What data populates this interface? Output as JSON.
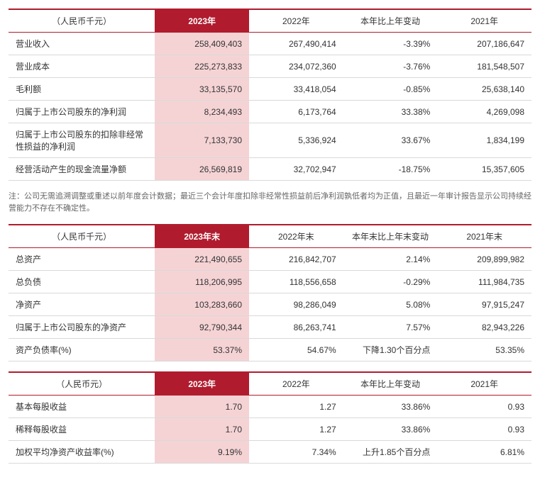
{
  "colors": {
    "accent": "#b01c2e",
    "highlight_bg": "#f5d3d5",
    "border": "#d9d9d9",
    "note_text": "#666666"
  },
  "table1": {
    "unit_label": "（人民币千元）",
    "headers": [
      "2023年",
      "2022年",
      "本年比上年变动",
      "2021年"
    ],
    "rows": [
      {
        "label": "营业收入",
        "v2023": "258,409,403",
        "v2022": "267,490,414",
        "change": "-3.39%",
        "v2021": "207,186,647"
      },
      {
        "label": "营业成本",
        "v2023": "225,273,833",
        "v2022": "234,072,360",
        "change": "-3.76%",
        "v2021": "181,548,507"
      },
      {
        "label": "毛利额",
        "v2023": "33,135,570",
        "v2022": "33,418,054",
        "change": "-0.85%",
        "v2021": "25,638,140"
      },
      {
        "label": "归属于上市公司股东的净利润",
        "v2023": "8,234,493",
        "v2022": "6,173,764",
        "change": "33.38%",
        "v2021": "4,269,098"
      },
      {
        "label": "归属于上市公司股东的扣除非经常性损益的净利润",
        "v2023": "7,133,730",
        "v2022": "5,336,924",
        "change": "33.67%",
        "v2021": "1,834,199"
      },
      {
        "label": "经营活动产生的现金流量净额",
        "v2023": "26,569,819",
        "v2022": "32,702,947",
        "change": "-18.75%",
        "v2021": "15,357,605"
      }
    ]
  },
  "note1": "注：公司无需追溯调整或重述以前年度会计数据；最近三个会计年度扣除非经常性损益前后净利润孰低者均为正值，且最近一年审计报告显示公司持续经营能力不存在不确定性。",
  "table2": {
    "unit_label": "（人民币千元）",
    "headers": [
      "2023年末",
      "2022年末",
      "本年末比上年末变动",
      "2021年末"
    ],
    "rows": [
      {
        "label": "总资产",
        "v2023": "221,490,655",
        "v2022": "216,842,707",
        "change": "2.14%",
        "v2021": "209,899,982"
      },
      {
        "label": "总负债",
        "v2023": "118,206,995",
        "v2022": "118,556,658",
        "change": "-0.29%",
        "v2021": "111,984,735"
      },
      {
        "label": "净资产",
        "v2023": "103,283,660",
        "v2022": "98,286,049",
        "change": "5.08%",
        "v2021": "97,915,247"
      },
      {
        "label": "归属于上市公司股东的净资产",
        "v2023": "92,790,344",
        "v2022": "86,263,741",
        "change": "7.57%",
        "v2021": "82,943,226"
      },
      {
        "label": "资产负债率(%)",
        "v2023": "53.37%",
        "v2022": "54.67%",
        "change": "下降1.30个百分点",
        "v2021": "53.35%"
      }
    ]
  },
  "table3": {
    "unit_label": "（人民币元）",
    "headers": [
      "2023年",
      "2022年",
      "本年比上年变动",
      "2021年"
    ],
    "rows": [
      {
        "label": "基本每股收益",
        "v2023": "1.70",
        "v2022": "1.27",
        "change": "33.86%",
        "v2021": "0.93"
      },
      {
        "label": "稀释每股收益",
        "v2023": "1.70",
        "v2022": "1.27",
        "change": "33.86%",
        "v2021": "0.93"
      },
      {
        "label": "加权平均净资产收益率(%)",
        "v2023": "9.19%",
        "v2022": "7.34%",
        "change": "上升1.85个百分点",
        "v2021": "6.81%"
      }
    ]
  }
}
